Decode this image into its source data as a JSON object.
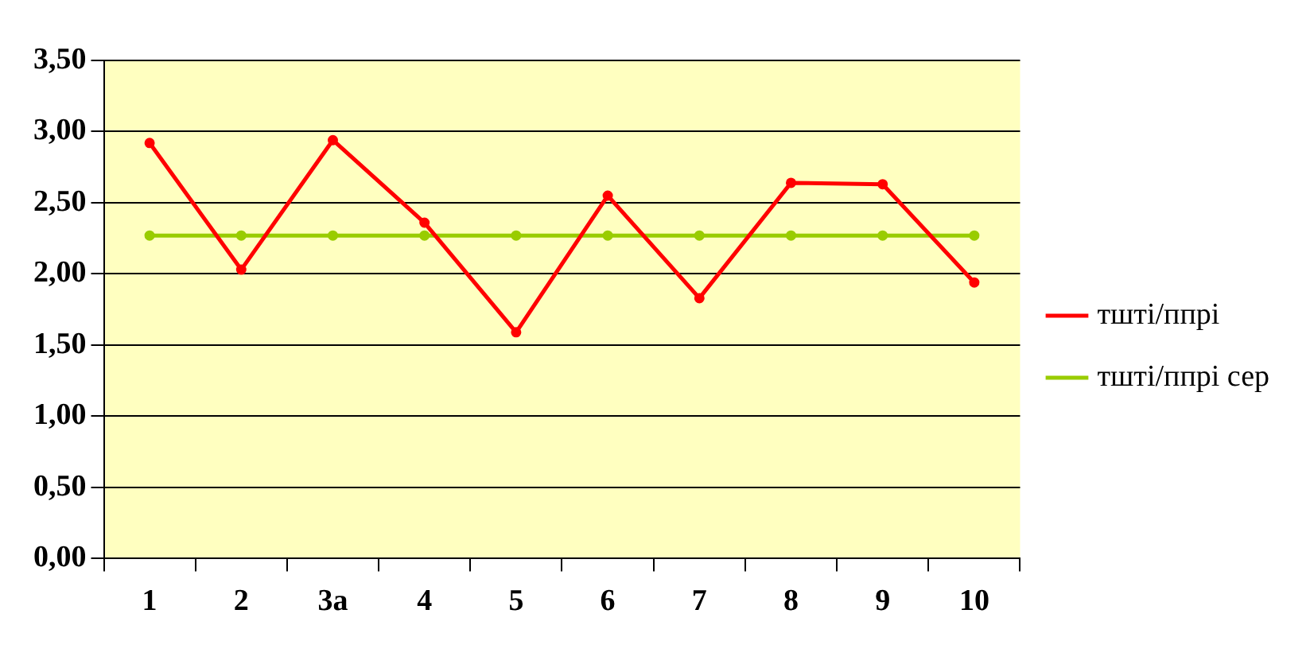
{
  "chart_data": {
    "type": "line",
    "categories": [
      "1",
      "2",
      "3а",
      "4",
      "5",
      "6",
      "7",
      "8",
      "9",
      "10"
    ],
    "series": [
      {
        "name": "тшті/ппрі",
        "color": "#ff0000",
        "values": [
          2.92,
          2.03,
          2.94,
          2.36,
          1.59,
          2.55,
          1.83,
          2.64,
          2.63,
          1.94
        ]
      },
      {
        "name": "тшті/ппрі сер",
        "color": "#99cc00",
        "values": [
          2.27,
          2.27,
          2.27,
          2.27,
          2.27,
          2.27,
          2.27,
          2.27,
          2.27,
          2.27
        ]
      }
    ],
    "ylim": [
      0,
      3.5
    ],
    "yticks": [
      {
        "value": 0,
        "label": "0,00"
      },
      {
        "value": 0.5,
        "label": "0,50"
      },
      {
        "value": 1,
        "label": "1,00"
      },
      {
        "value": 1.5,
        "label": "1,50"
      },
      {
        "value": 2,
        "label": "2,00"
      },
      {
        "value": 2.5,
        "label": "2,50"
      },
      {
        "value": 3,
        "label": "3,00"
      },
      {
        "value": 3.5,
        "label": "3,50"
      }
    ],
    "grid": "y",
    "legend": "right",
    "marker": "circle",
    "line_style": "solid"
  }
}
